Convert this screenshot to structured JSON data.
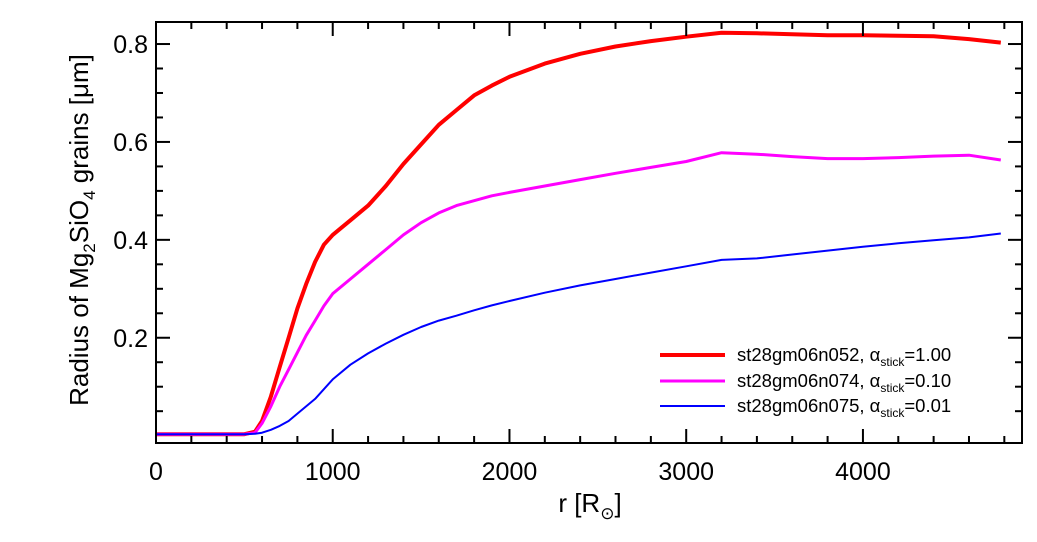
{
  "chart_data": {
    "type": "line",
    "title": "",
    "xlabel": {
      "main": "r [R",
      "symbol": "⊙",
      "close": "]"
    },
    "ylabel": {
      "pre": "Radius of Mg",
      "sub1": "2",
      "mid": "SiO",
      "sub2": "4",
      "post": " grains [μm]"
    },
    "xlim": [
      0,
      4900
    ],
    "ylim": [
      -0.015,
      0.845
    ],
    "xticks": [
      0,
      1000,
      2000,
      3000,
      4000
    ],
    "xtick_labels": [
      "0",
      "1000",
      "2000",
      "3000",
      "4000"
    ],
    "yticks": [
      0.2,
      0.4,
      0.6,
      0.8
    ],
    "ytick_labels": [
      "0.2",
      "0.4",
      "0.6",
      "0.8"
    ],
    "x_minor_step": 200,
    "y_minor_step": 0.05,
    "grid": false,
    "legend_position": "bottom-right",
    "series": [
      {
        "name": {
          "base": "st28gm06n052, α",
          "sub": "stick",
          "tail": "=1.00"
        },
        "color": "#ff0000",
        "width": 4,
        "points": [
          [
            0,
            0.003
          ],
          [
            500,
            0.003
          ],
          [
            560,
            0.008
          ],
          [
            600,
            0.03
          ],
          [
            650,
            0.08
          ],
          [
            700,
            0.14
          ],
          [
            750,
            0.2
          ],
          [
            800,
            0.26
          ],
          [
            850,
            0.31
          ],
          [
            900,
            0.355
          ],
          [
            950,
            0.39
          ],
          [
            1000,
            0.41
          ],
          [
            1050,
            0.425
          ],
          [
            1100,
            0.44
          ],
          [
            1200,
            0.47
          ],
          [
            1300,
            0.51
          ],
          [
            1400,
            0.555
          ],
          [
            1500,
            0.595
          ],
          [
            1600,
            0.635
          ],
          [
            1700,
            0.665
          ],
          [
            1800,
            0.695
          ],
          [
            1900,
            0.715
          ],
          [
            2000,
            0.733
          ],
          [
            2200,
            0.76
          ],
          [
            2400,
            0.78
          ],
          [
            2600,
            0.795
          ],
          [
            2800,
            0.806
          ],
          [
            3000,
            0.815
          ],
          [
            3200,
            0.823
          ],
          [
            3400,
            0.822
          ],
          [
            3600,
            0.82
          ],
          [
            3800,
            0.818
          ],
          [
            4000,
            0.818
          ],
          [
            4200,
            0.817
          ],
          [
            4400,
            0.816
          ],
          [
            4600,
            0.81
          ],
          [
            4780,
            0.803
          ]
        ]
      },
      {
        "name": {
          "base": "st28gm06n074, α",
          "sub": "stick",
          "tail": "=0.10"
        },
        "color": "#ff00ff",
        "width": 3,
        "points": [
          [
            0,
            0.003
          ],
          [
            500,
            0.003
          ],
          [
            560,
            0.006
          ],
          [
            600,
            0.025
          ],
          [
            650,
            0.06
          ],
          [
            700,
            0.1
          ],
          [
            750,
            0.135
          ],
          [
            800,
            0.17
          ],
          [
            850,
            0.205
          ],
          [
            900,
            0.235
          ],
          [
            950,
            0.265
          ],
          [
            1000,
            0.29
          ],
          [
            1100,
            0.32
          ],
          [
            1200,
            0.35
          ],
          [
            1300,
            0.38
          ],
          [
            1400,
            0.41
          ],
          [
            1500,
            0.435
          ],
          [
            1600,
            0.455
          ],
          [
            1700,
            0.47
          ],
          [
            1800,
            0.48
          ],
          [
            1900,
            0.49
          ],
          [
            2000,
            0.497
          ],
          [
            2200,
            0.51
          ],
          [
            2400,
            0.523
          ],
          [
            2600,
            0.536
          ],
          [
            2800,
            0.548
          ],
          [
            3000,
            0.56
          ],
          [
            3200,
            0.578
          ],
          [
            3400,
            0.575
          ],
          [
            3600,
            0.57
          ],
          [
            3800,
            0.566
          ],
          [
            4000,
            0.566
          ],
          [
            4200,
            0.568
          ],
          [
            4400,
            0.571
          ],
          [
            4600,
            0.573
          ],
          [
            4780,
            0.563
          ]
        ]
      },
      {
        "name": {
          "base": "st28gm06n075, α",
          "sub": "stick",
          "tail": "=0.01"
        },
        "color": "#0000ff",
        "width": 2,
        "points": [
          [
            0,
            0.003
          ],
          [
            500,
            0.003
          ],
          [
            560,
            0.004
          ],
          [
            600,
            0.006
          ],
          [
            650,
            0.012
          ],
          [
            700,
            0.02
          ],
          [
            750,
            0.03
          ],
          [
            800,
            0.045
          ],
          [
            900,
            0.075
          ],
          [
            1000,
            0.115
          ],
          [
            1100,
            0.145
          ],
          [
            1200,
            0.168
          ],
          [
            1300,
            0.188
          ],
          [
            1400,
            0.206
          ],
          [
            1500,
            0.222
          ],
          [
            1600,
            0.235
          ],
          [
            1700,
            0.245
          ],
          [
            1800,
            0.256
          ],
          [
            1900,
            0.266
          ],
          [
            2000,
            0.275
          ],
          [
            2200,
            0.292
          ],
          [
            2400,
            0.307
          ],
          [
            2600,
            0.32
          ],
          [
            2800,
            0.333
          ],
          [
            3000,
            0.346
          ],
          [
            3200,
            0.359
          ],
          [
            3400,
            0.362
          ],
          [
            3600,
            0.37
          ],
          [
            3800,
            0.378
          ],
          [
            4000,
            0.386
          ],
          [
            4200,
            0.393
          ],
          [
            4400,
            0.399
          ],
          [
            4600,
            0.405
          ],
          [
            4780,
            0.413
          ]
        ]
      }
    ]
  }
}
